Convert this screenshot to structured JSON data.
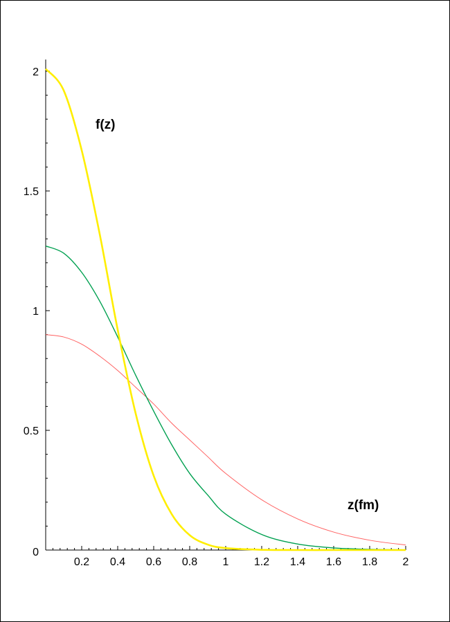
{
  "chart_data": {
    "type": "line",
    "title": "",
    "xlabel": "z(fm)",
    "ylabel": "f(z)",
    "xlim": [
      0,
      2
    ],
    "ylim": [
      0,
      2
    ],
    "grid": false,
    "legend": "none",
    "x_ticks": [
      "0.2",
      "0.4",
      "0.6",
      "0.8",
      "1",
      "1.2",
      "1.4",
      "1.6",
      "1.8",
      "2"
    ],
    "x_tick_values": [
      0.2,
      0.4,
      0.6,
      0.8,
      1.0,
      1.2,
      1.4,
      1.6,
      1.8,
      2.0
    ],
    "y_ticks": [
      "0",
      "0.5",
      "1",
      "1.5",
      "2"
    ],
    "y_tick_values": [
      0,
      0.5,
      1.0,
      1.5,
      2.0
    ],
    "series": [
      {
        "color": "#ffee00",
        "x": [
          0,
          0.1,
          0.2,
          0.3,
          0.4,
          0.5,
          0.6,
          0.7,
          0.8,
          0.9,
          1.0,
          1.2,
          1.4,
          1.6,
          1.8,
          2.0
        ],
        "y": [
          2.01,
          1.92,
          1.67,
          1.32,
          0.92,
          0.57,
          0.31,
          0.15,
          0.062,
          0.023,
          0.008,
          0.001,
          0,
          0,
          0,
          0
        ]
      },
      {
        "color": "#00a050",
        "x": [
          0,
          0.1,
          0.2,
          0.3,
          0.4,
          0.5,
          0.6,
          0.7,
          0.8,
          0.9,
          1.0,
          1.2,
          1.4,
          1.6,
          1.8,
          2.0
        ],
        "y": [
          1.27,
          1.24,
          1.16,
          1.04,
          0.89,
          0.73,
          0.58,
          0.44,
          0.32,
          0.23,
          0.15,
          0.065,
          0.025,
          0.009,
          0.003,
          0.001
        ]
      },
      {
        "color": "#ff6060",
        "x": [
          0,
          0.1,
          0.2,
          0.3,
          0.4,
          0.5,
          0.6,
          0.7,
          0.8,
          0.9,
          1.0,
          1.2,
          1.4,
          1.6,
          1.8,
          2.0
        ],
        "y": [
          0.9,
          0.89,
          0.86,
          0.81,
          0.75,
          0.68,
          0.61,
          0.53,
          0.46,
          0.39,
          0.32,
          0.21,
          0.13,
          0.075,
          0.041,
          0.021
        ]
      }
    ]
  }
}
